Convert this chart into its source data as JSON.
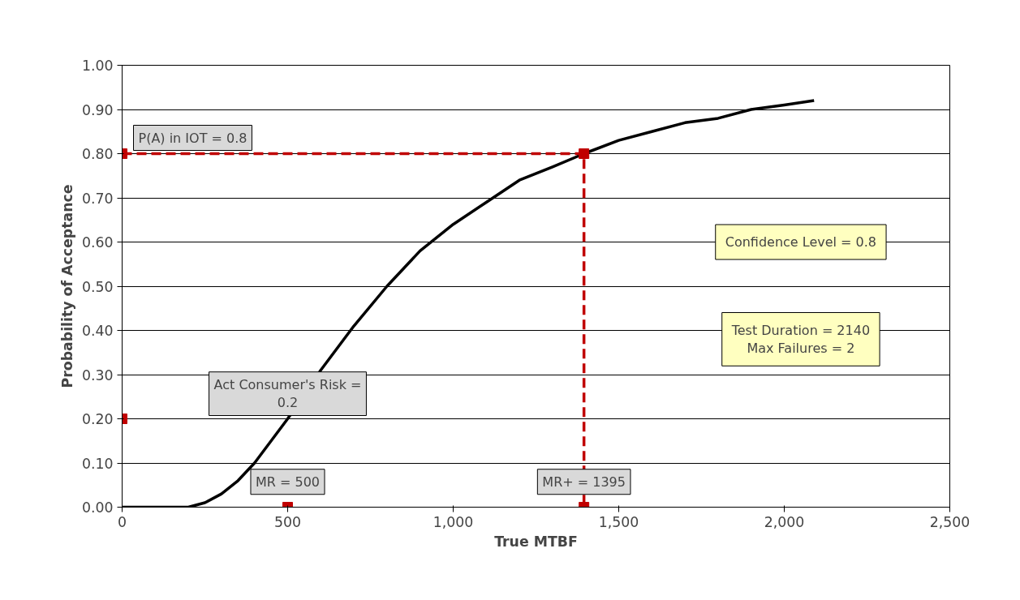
{
  "chart_data": {
    "type": "line",
    "xlabel": "True MTBF",
    "ylabel": "Probability of Acceptance",
    "xlim": [
      0,
      2500
    ],
    "xticks": [
      0,
      500,
      {
        "value": 1000,
        "label": "1,000"
      },
      {
        "value": 1500,
        "label": "1,500"
      },
      {
        "value": 2000,
        "label": "2,000"
      },
      {
        "value": 2500,
        "label": "2,500"
      }
    ],
    "ylim": [
      0,
      1
    ],
    "yticks": [
      {
        "value": 0,
        "label": "0.00"
      },
      {
        "value": 0.1,
        "label": "0.10"
      },
      {
        "value": 0.2,
        "label": "0.20"
      },
      {
        "value": 0.3,
        "label": "0.30"
      },
      {
        "value": 0.4,
        "label": "0.40"
      },
      {
        "value": 0.5,
        "label": "0.50"
      },
      {
        "value": 0.6,
        "label": "0.60"
      },
      {
        "value": 0.7,
        "label": "0.70"
      },
      {
        "value": 0.8,
        "label": "0.80"
      },
      {
        "value": 0.9,
        "label": "0.90"
      },
      {
        "value": 1,
        "label": "1.00"
      }
    ],
    "grid": "y",
    "series": [
      {
        "color": "#000000",
        "line_style": "solid",
        "marker": "none",
        "x": [
          0,
          100,
          200,
          250,
          300,
          350,
          400,
          450,
          500,
          600,
          700,
          800,
          900,
          1000,
          1100,
          1200,
          1300,
          1395,
          1500,
          1600,
          1700,
          1800,
          1900,
          2000,
          2090
        ],
        "values": [
          0,
          0,
          0.0,
          0.01,
          0.03,
          0.06,
          0.1,
          0.15,
          0.2,
          0.31,
          0.41,
          0.5,
          0.58,
          0.64,
          0.69,
          0.74,
          0.77,
          0.8,
          0.83,
          0.85,
          0.87,
          0.88,
          0.9,
          0.91,
          0.92
        ]
      },
      {
        "type": "line",
        "color": "#c00000",
        "line_style": "dashed",
        "marker": "square",
        "x": [
          0,
          1395,
          1395
        ],
        "values": [
          0.8,
          0.8,
          0
        ]
      },
      {
        "type": "scatter",
        "color": "#c00000",
        "marker": "square",
        "x": [
          0,
          500
        ],
        "values": [
          0.2,
          0
        ]
      }
    ],
    "annotations": [
      {
        "text": "P(A) in IOT = 0.8",
        "x": 0,
        "y": 0.8
      },
      {
        "text": "Act Consumer's Risk =\n0.2",
        "x": 500,
        "y": 0.2
      },
      {
        "text": "MR = 500",
        "x": 500,
        "y": 0
      },
      {
        "text": "MR+ = 1395",
        "x": 1395,
        "y": 0
      },
      "Confidence Level = 0.8",
      "Test Duration = 2140\nMax Failures = 2"
    ]
  }
}
